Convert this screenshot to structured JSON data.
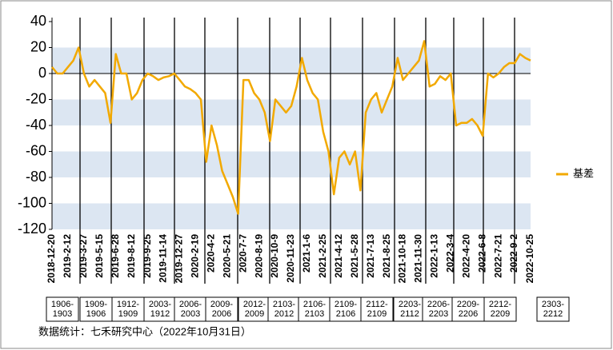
{
  "chart_data": {
    "type": "line",
    "categories": [
      "2018-12-20",
      null,
      null,
      "2019-2-12",
      null,
      null,
      "2019-3-27",
      null,
      null,
      "2019-5-15",
      null,
      null,
      "2019-6-28",
      null,
      null,
      "2019-8-12",
      null,
      null,
      "2019-9-25",
      null,
      null,
      "2019-11-14",
      null,
      null,
      "2019-12-27",
      null,
      null,
      "2020-2-19",
      null,
      null,
      "2020-4-2",
      null,
      null,
      "2020-5-21",
      null,
      null,
      "2020-7-7",
      null,
      null,
      "2020-8-19",
      null,
      null,
      "2020-10-9",
      null,
      null,
      "2020-11-23",
      null,
      null,
      "2021-1-6",
      null,
      null,
      "2021-2-25",
      null,
      null,
      "2021-4-12",
      null,
      null,
      "2021-5-28",
      null,
      null,
      "2021-7-13",
      null,
      null,
      "2021-8-25",
      null,
      null,
      "2021-10-18",
      null,
      null,
      "2021-11-30",
      null,
      null,
      "2022-1-13",
      null,
      null,
      "2022-3-4",
      null,
      null,
      "2022-4-20",
      null,
      null,
      "2022-6-8",
      null,
      null,
      "2022-7-21",
      null,
      null,
      "2022-9-2",
      null,
      null,
      "2022-10-25"
    ],
    "series": [
      {
        "name": "基差",
        "color": "#f2a900",
        "values": [
          5,
          0,
          0,
          5,
          10,
          20,
          0,
          -10,
          -5,
          -10,
          -15,
          -38,
          15,
          0,
          0,
          -20,
          -15,
          -5,
          0,
          -2,
          -5,
          -3,
          -2,
          0,
          -5,
          -10,
          -12,
          -15,
          -20,
          -68,
          -40,
          -55,
          -75,
          -85,
          -95,
          -108,
          -5,
          -5,
          -15,
          -20,
          -30,
          -52,
          -20,
          -25,
          -30,
          -25,
          -10,
          12,
          -5,
          -15,
          -20,
          -45,
          -60,
          -93,
          -65,
          -60,
          -70,
          -60,
          -90,
          -30,
          -20,
          -15,
          -30,
          -20,
          -10,
          12,
          -5,
          0,
          5,
          10,
          25,
          -10,
          -8,
          -2,
          -5,
          0,
          -40,
          -38,
          -38,
          -35,
          -40,
          -48,
          0,
          -3,
          0,
          5,
          8,
          8,
          15,
          12,
          10
        ]
      }
    ],
    "ylim": [
      -120,
      40
    ],
    "yticks": [
      -120,
      -100,
      -80,
      -60,
      -40,
      -20,
      0,
      20,
      40
    ],
    "grid_bands": true,
    "legend": "right",
    "contracts": [
      [
        "1906-",
        "1903"
      ],
      [
        "1909-",
        "1906"
      ],
      [
        "1912-",
        "1909"
      ],
      [
        "2003-",
        "1912"
      ],
      [
        "2006-",
        "2003"
      ],
      [
        "2009-",
        "2006"
      ],
      [
        "2012-",
        "2009"
      ],
      [
        "2103-",
        "2012"
      ],
      [
        "2106-",
        "2103"
      ],
      [
        "2109-",
        "2106"
      ],
      [
        "2112-",
        "2109"
      ],
      [
        "2203-",
        "2112"
      ],
      [
        "2206-",
        "2203"
      ],
      [
        "2209-",
        "2206"
      ],
      [
        "2212-",
        "2209"
      ],
      [
        "2303-",
        "2212"
      ]
    ],
    "source": "数据统计：七禾研究中心（2022年10月31日）"
  }
}
